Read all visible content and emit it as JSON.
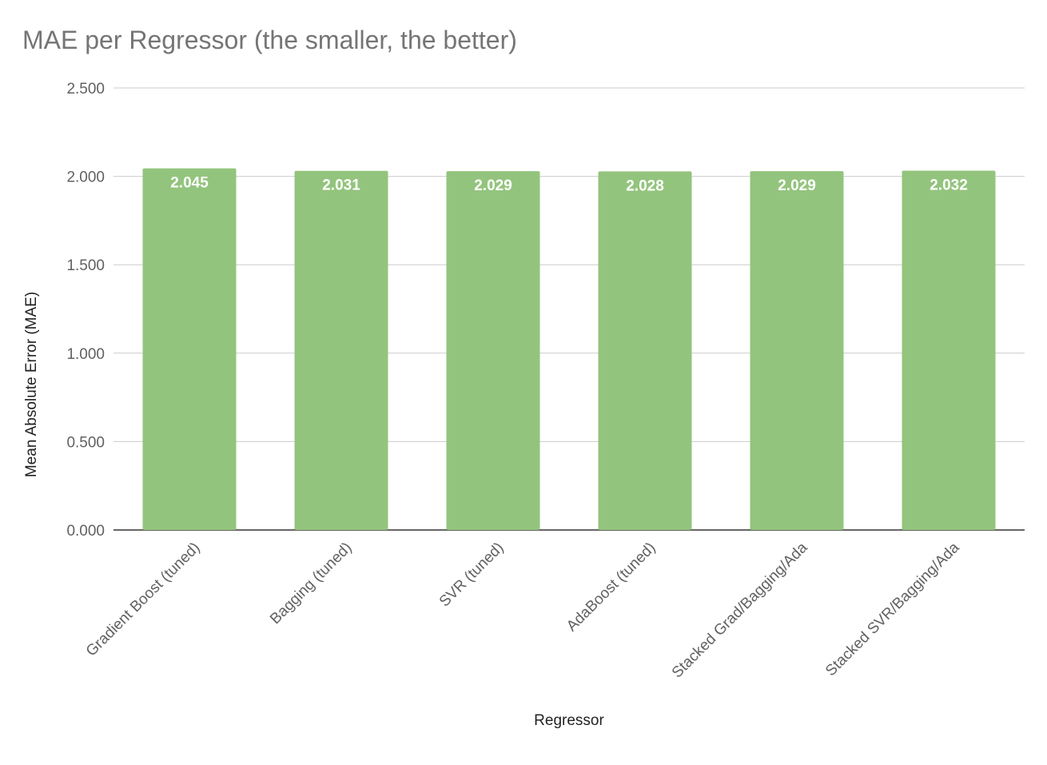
{
  "chart_data": {
    "type": "bar",
    "title": "MAE per Regressor (the smaller, the better)",
    "xlabel": "Regressor",
    "ylabel": "Mean Absolute Error (MAE)",
    "categories": [
      "Gradient Boost (tuned)",
      "Bagging (tuned)",
      "SVR (tuned)",
      "AdaBoost (tuned)",
      "Stacked Grad/Bagging/Ada",
      "Stacked SVR/Bagging/Ada"
    ],
    "values": [
      2.045,
      2.031,
      2.029,
      2.028,
      2.029,
      2.032
    ],
    "data_labels": [
      "2.045",
      "2.031",
      "2.029",
      "2.028",
      "2.029",
      "2.032"
    ],
    "ylim": [
      0,
      2.5
    ],
    "yticks": [
      0,
      0.5,
      1.0,
      1.5,
      2.0,
      2.5
    ],
    "ytick_labels": [
      "0.000",
      "0.500",
      "1.000",
      "1.500",
      "2.000",
      "2.500"
    ],
    "grid": true,
    "legend": "none",
    "colors": {
      "bar": "#93c47d",
      "title": "#757575",
      "tick": "#616161",
      "axis_title": "#222222",
      "grid": "#cccccc",
      "baseline": "#333333"
    }
  }
}
